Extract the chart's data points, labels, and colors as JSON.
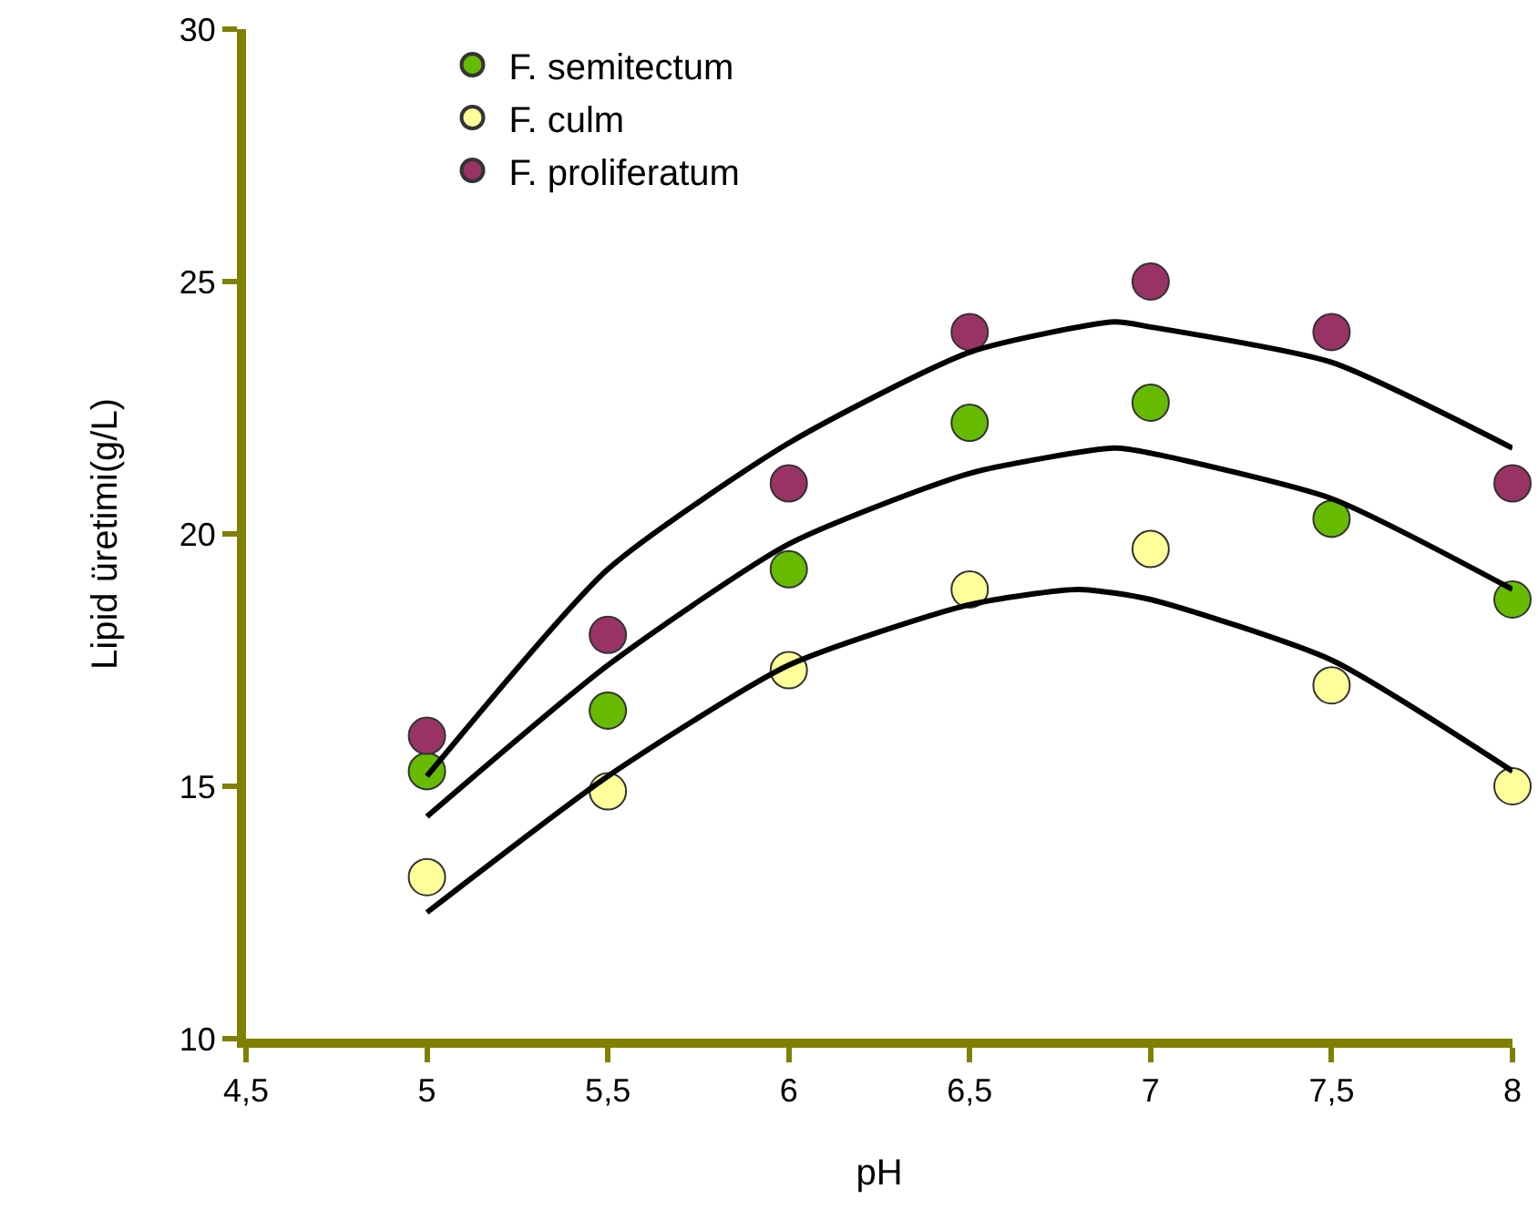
{
  "chart_data": {
    "type": "scatter",
    "xlabel": "pH",
    "ylabel": "Lipid üretimi(g/L)",
    "xlim": [
      4.5,
      8
    ],
    "xticks": [
      {
        "value": 4.5,
        "label": "4,5"
      },
      5,
      {
        "value": 5.5,
        "label": "5,5"
      },
      6,
      {
        "value": 6.5,
        "label": "6,5"
      },
      7,
      {
        "value": 7.5,
        "label": "7,5"
      },
      8
    ],
    "ylim": [
      10,
      30
    ],
    "yticks": [
      10,
      15,
      20,
      25,
      30
    ],
    "grid": false,
    "legend": "top left",
    "marker": "circle",
    "x": [
      5,
      5.5,
      6,
      6.5,
      7,
      7.5,
      8
    ],
    "series": [
      {
        "name": "F. semitectum",
        "color": "#66bb00",
        "values": [
          15.3,
          16.5,
          19.3,
          22.2,
          22.6,
          20.3,
          18.7
        ]
      },
      {
        "name": "F. culm",
        "color": "#ffff99",
        "values": [
          13.2,
          14.9,
          17.3,
          18.9,
          19.7,
          17.0,
          15.0
        ]
      },
      {
        "name": "F. proliferatum",
        "color": "#993366",
        "values": [
          16.0,
          18.0,
          21.0,
          24.0,
          25.0,
          24.0,
          21.0
        ]
      },
      {
        "type": "line",
        "marker": "none",
        "color": "#000000",
        "x": [
          5,
          5.5,
          6,
          6.5,
          6.9,
          7,
          7.5,
          8
        ],
        "values": [
          15.2,
          19.3,
          21.8,
          23.6,
          24.2,
          24.1,
          23.4,
          21.7
        ]
      },
      {
        "type": "line",
        "marker": "none",
        "color": "#000000",
        "x": [
          5,
          5.5,
          6,
          6.5,
          6.9,
          7,
          7.5,
          8
        ],
        "values": [
          14.4,
          17.4,
          19.8,
          21.2,
          21.7,
          21.6,
          20.7,
          18.9
        ]
      },
      {
        "type": "line",
        "marker": "none",
        "color": "#000000",
        "x": [
          5,
          5.5,
          6,
          6.5,
          6.8,
          7,
          7.5,
          8
        ],
        "values": [
          12.5,
          15.2,
          17.4,
          18.6,
          18.9,
          18.7,
          17.5,
          15.3
        ]
      }
    ]
  }
}
